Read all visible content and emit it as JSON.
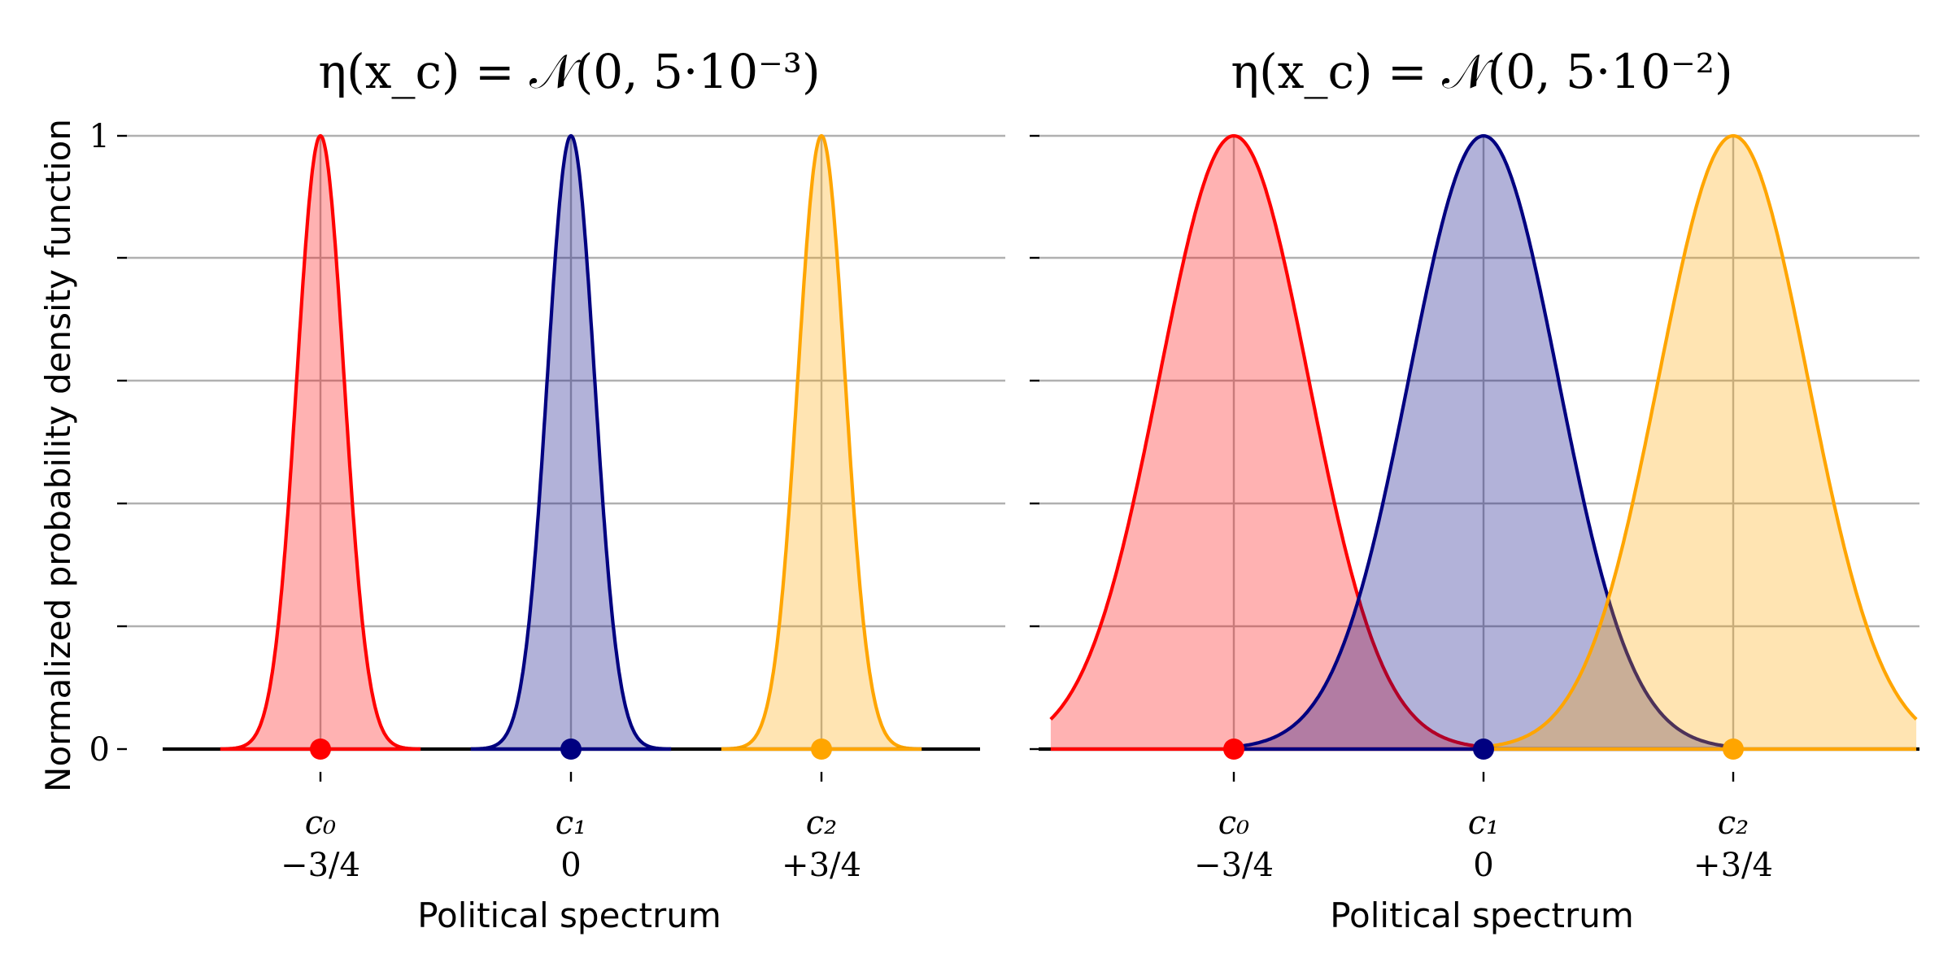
{
  "ylabel": "Normalized probability density function",
  "colors": [
    "#ff0000",
    "#000080",
    "#ffa500"
  ],
  "chart_data": [
    {
      "type": "area",
      "title": "η(x_c) = 𝒩(0, 5·10⁻³)",
      "xlabel": "Political spectrum",
      "ylabel": "Normalized probability density function",
      "x_range": [
        -1.2,
        1.2
      ],
      "ylim": [
        0,
        1
      ],
      "grid": true,
      "variance": 0.005,
      "support_halfwidth": 0.3,
      "yticks": [
        "0",
        "1"
      ],
      "categories": [
        {
          "name": "c₀",
          "value_label": "−3/4",
          "x": -0.75
        },
        {
          "name": "c₁",
          "value_label": "0",
          "x": 0
        },
        {
          "name": "c₂",
          "value_label": "+3/4",
          "x": 0.75
        }
      ]
    },
    {
      "type": "area",
      "title": "η(x_c) = 𝒩(0, 5·10⁻²)",
      "xlabel": "Political spectrum",
      "ylabel": "",
      "x_range": [
        -1.3,
        1.3
      ],
      "ylim": [
        0,
        1
      ],
      "grid": true,
      "variance": 0.05,
      "support_halfwidth": 0.75,
      "yticks": [],
      "categories": [
        {
          "name": "c₀",
          "value_label": "−3/4",
          "x": -0.75
        },
        {
          "name": "c₁",
          "value_label": "0",
          "x": 0
        },
        {
          "name": "c₂",
          "value_label": "+3/4",
          "x": 0.75
        }
      ]
    }
  ]
}
